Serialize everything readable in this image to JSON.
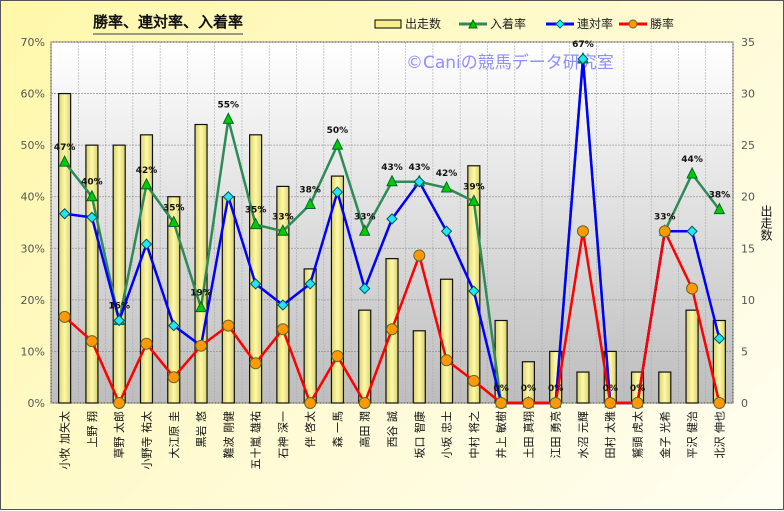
{
  "chart_data": {
    "type": "bar+line",
    "title": "勝率、連対率、入着率",
    "categories": [
      "小牧 加矢太",
      "上野 翔",
      "草野 太郎",
      "小野寺 祐太",
      "大江原 圭",
      "黒岩 悠",
      "難波 剛健",
      "五十嵐 雄祐",
      "石神 深一",
      "伴 啓太",
      "森 一馬",
      "高田 潤",
      "西谷 誠",
      "坂口 智康",
      "小坂 忠士",
      "中村 将之",
      "井上 敏樹",
      "土田 真翔",
      "江田 勇亮",
      "水沼 元輝",
      "田村 太雅",
      "鷲頭 虎太",
      "金子 光希",
      "平沢 健治",
      "北沢 伸也"
    ],
    "series": [
      {
        "name": "出走数",
        "type": "bar",
        "axis": "right",
        "color": "#f5ee8a",
        "values": [
          30,
          25,
          25,
          26,
          20,
          27,
          20,
          26,
          21,
          13,
          22,
          9,
          14,
          7,
          12,
          23,
          8,
          4,
          5,
          3,
          5,
          3,
          3,
          9,
          8
        ]
      },
      {
        "name": "入着率",
        "type": "line",
        "axis": "left",
        "color": "#2e8b57",
        "marker": "triangle",
        "values": [
          46.7,
          40,
          16,
          42.3,
          35,
          18.5,
          55,
          34.6,
          33.3,
          38.5,
          50,
          33.3,
          42.9,
          42.9,
          41.7,
          39.1,
          0,
          0,
          0,
          66.7,
          0,
          0,
          33.3,
          44.4,
          37.5
        ],
        "labels": [
          "47%",
          "40%",
          "16%",
          "42%",
          "35%",
          "19%",
          "55%",
          "35%",
          "33%",
          "38%",
          "50%",
          "33%",
          "43%",
          "43%",
          "42%",
          "39%",
          "0%",
          "0%",
          "0%",
          "67%",
          "0%",
          "0%",
          "33%",
          "44%",
          "38%"
        ]
      },
      {
        "name": "連対率",
        "type": "line",
        "axis": "left",
        "color": "#0000ff",
        "marker": "diamond",
        "values": [
          36.7,
          36,
          16,
          30.8,
          15,
          11.1,
          40,
          23.1,
          19,
          23.1,
          40.9,
          22.2,
          35.7,
          42.9,
          33.3,
          21.7,
          0,
          0,
          0,
          66.7,
          0,
          0,
          33.3,
          33.3,
          12.5
        ]
      },
      {
        "name": "勝率",
        "type": "line",
        "axis": "left",
        "color": "#ff0000",
        "marker": "circle",
        "values": [
          16.7,
          12,
          0,
          11.5,
          5,
          11.1,
          15,
          7.7,
          14.3,
          0,
          9.1,
          0,
          14.3,
          28.6,
          8.3,
          4.3,
          0,
          0,
          0,
          33.3,
          0,
          0,
          33.3,
          22.2,
          0
        ]
      }
    ],
    "ylabel_left": "",
    "ylabel_right": "出走数",
    "ylim_left": [
      0,
      70
    ],
    "ylim_right": [
      0,
      35
    ],
    "yticks_left": [
      "0%",
      "10%",
      "20%",
      "30%",
      "40%",
      "50%",
      "60%",
      "70%"
    ],
    "yticks_right": [
      "0",
      "5",
      "10",
      "15",
      "20",
      "25",
      "30",
      "35"
    ],
    "grid": true,
    "legend": "top-right",
    "watermark": "©Caniの競馬データ研究室"
  }
}
